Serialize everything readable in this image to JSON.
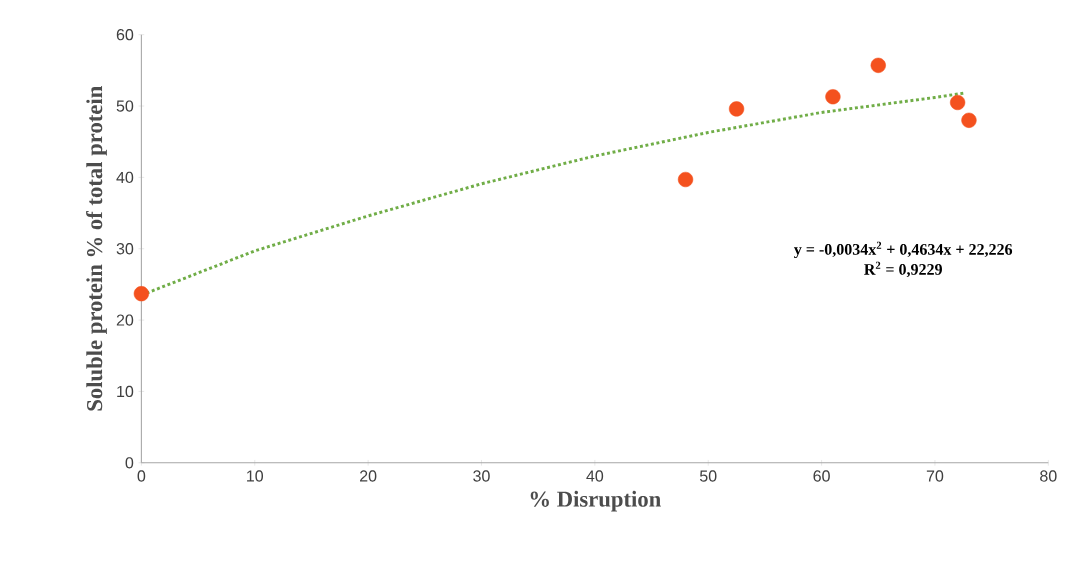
{
  "chart_data": {
    "type": "scatter",
    "xlabel": "% Disruption",
    "ylabel": "Soluble protein % of total protein",
    "xlim": [
      0,
      80
    ],
    "ylim": [
      0,
      60
    ],
    "xticks": [
      0,
      10,
      20,
      30,
      40,
      50,
      60,
      70,
      80
    ],
    "yticks": [
      0,
      10,
      20,
      30,
      40,
      50,
      60
    ],
    "grid": false,
    "series": [
      {
        "marker": "circle",
        "color": "#f4511e",
        "x": [
          0,
          48,
          52.5,
          61,
          65,
          72,
          73
        ],
        "values": [
          23.7,
          39.7,
          49.6,
          51.3,
          55.7,
          50.5,
          48.0
        ]
      },
      {
        "type": "line",
        "marker": "none",
        "color": "#70ad47",
        "line_style": "dotted",
        "x": [
          0,
          10,
          20,
          30,
          40,
          50,
          60,
          70,
          72.5
        ],
        "values": [
          23.5,
          29.7,
          34.6,
          39.1,
          43.0,
          46.3,
          49.1,
          51.2,
          51.8
        ]
      }
    ],
    "annotations": [
      "y = -0,0034x$^{2}$ + 0,4634x + 22,226",
      "R$^{2}$ = 0,9229"
    ]
  }
}
